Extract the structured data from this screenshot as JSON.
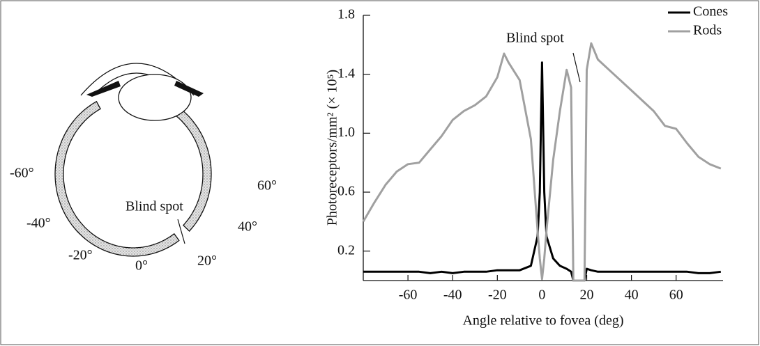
{
  "diagram": {
    "angle_labels": [
      "-60°",
      "-40°",
      "-20°",
      "0°",
      "20°",
      "40°",
      "60°"
    ],
    "blind_spot_label": "Blind spot"
  },
  "chart_data": {
    "type": "line",
    "y_label": "Photoreceptors/mm² (× 10⁵)",
    "x_label": "Angle relative to fovea (deg)",
    "annotation": "Blind spot",
    "x": [
      -80,
      -75,
      -70,
      -65,
      -60,
      -55,
      -50,
      -45,
      -40,
      -35,
      -30,
      -25,
      -20,
      -17,
      -15,
      -10,
      -5,
      -2,
      -1,
      0,
      1,
      2,
      5,
      8,
      11,
      13,
      14,
      19,
      20,
      22,
      25,
      30,
      40,
      50,
      55,
      60,
      65,
      70,
      75,
      80
    ],
    "series": [
      {
        "name": "Cones",
        "color": "#000000",
        "values": [
          0.06,
          0.06,
          0.06,
          0.06,
          0.06,
          0.06,
          0.05,
          0.06,
          0.05,
          0.06,
          0.06,
          0.06,
          0.07,
          0.07,
          0.07,
          0.07,
          0.1,
          0.3,
          0.6,
          1.48,
          0.6,
          0.3,
          0.15,
          0.1,
          0.08,
          0.06,
          0,
          0,
          0.08,
          0.07,
          0.06,
          0.06,
          0.06,
          0.06,
          0.06,
          0.06,
          0.06,
          0.05,
          0.05,
          0.06
        ]
      },
      {
        "name": "Rods",
        "color": "#a0a0a0",
        "values": [
          0.4,
          0.53,
          0.65,
          0.74,
          0.79,
          0.8,
          0.89,
          0.98,
          1.09,
          1.15,
          1.19,
          1.25,
          1.38,
          1.54,
          1.48,
          1.36,
          0.96,
          0.34,
          0.15,
          0.01,
          0.15,
          0.34,
          0.82,
          1.15,
          1.43,
          1.31,
          0,
          0,
          1.43,
          1.61,
          1.5,
          1.43,
          1.29,
          1.15,
          1.05,
          1.03,
          0.93,
          0.84,
          0.79,
          0.76
        ]
      }
    ],
    "xlim": [
      -80,
      81
    ],
    "ylim": [
      0,
      1.8
    ],
    "xticks": [
      -60,
      -40,
      -20,
      0,
      20,
      40,
      60
    ],
    "yticks": [
      0.2,
      0.6,
      {
        "value": 1,
        "label": "1.0"
      },
      1.4,
      1.8
    ],
    "legend": "top-right"
  }
}
